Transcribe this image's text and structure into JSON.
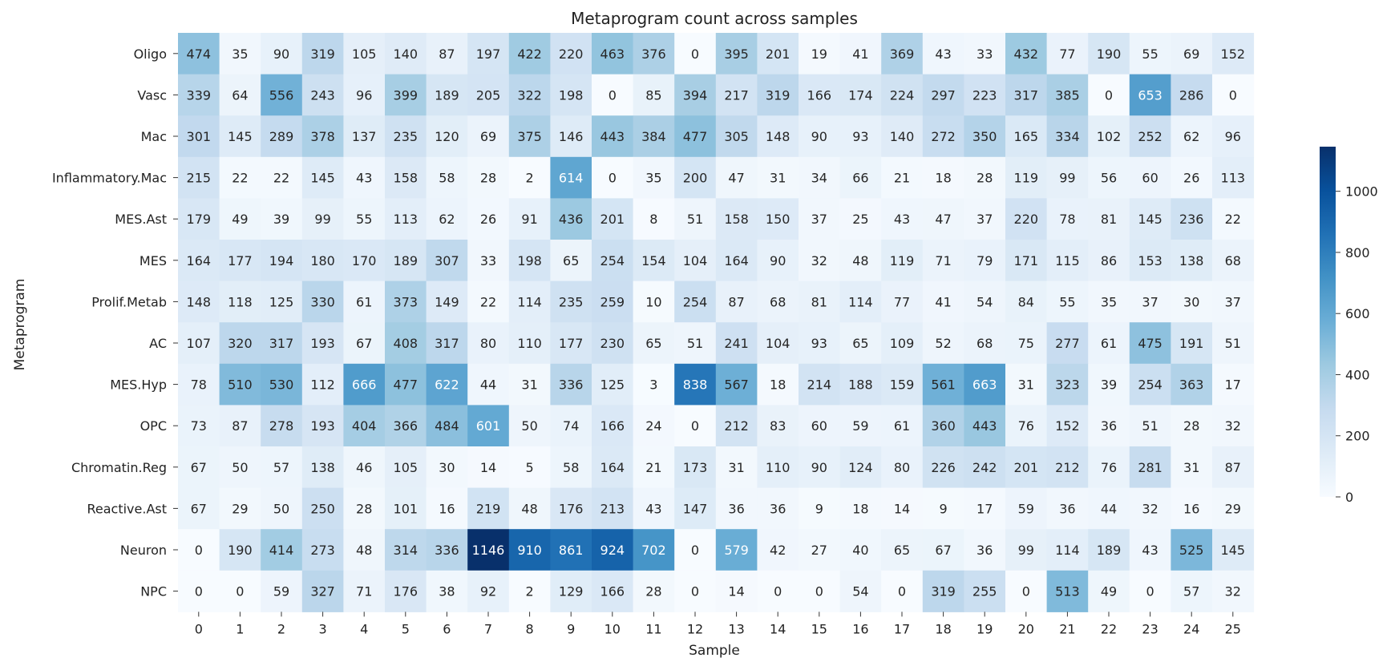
{
  "chart_data": {
    "type": "heatmap",
    "title": "Metaprogram count across samples",
    "xlabel": "Sample",
    "ylabel": "Metaprogram",
    "colormap": "Blues",
    "color_low": "#f7fbff",
    "color_high": "#08306b",
    "vmin": 0,
    "vmax": 1146,
    "colorbar_ticks": [
      0,
      200,
      400,
      600,
      800,
      1000
    ],
    "x": [
      "0",
      "1",
      "2",
      "3",
      "4",
      "5",
      "6",
      "7",
      "8",
      "9",
      "10",
      "11",
      "12",
      "13",
      "14",
      "15",
      "16",
      "17",
      "18",
      "19",
      "20",
      "21",
      "22",
      "23",
      "24",
      "25"
    ],
    "y": [
      "Oligo",
      "Vasc",
      "Mac",
      "Inflammatory.Mac",
      "MES.Ast",
      "MES",
      "Prolif.Metab",
      "AC",
      "MES.Hyp",
      "OPC",
      "Chromatin.Reg",
      "Reactive.Ast",
      "Neuron",
      "NPC"
    ],
    "values": [
      [
        474,
        35,
        90,
        319,
        105,
        140,
        87,
        197,
        422,
        220,
        463,
        376,
        0,
        395,
        201,
        19,
        41,
        369,
        43,
        33,
        432,
        77,
        190,
        55,
        69,
        152
      ],
      [
        339,
        64,
        556,
        243,
        96,
        399,
        189,
        205,
        322,
        198,
        0,
        85,
        394,
        217,
        319,
        166,
        174,
        224,
        297,
        223,
        317,
        385,
        0,
        653,
        286,
        0
      ],
      [
        301,
        145,
        289,
        378,
        137,
        235,
        120,
        69,
        375,
        146,
        443,
        384,
        477,
        305,
        148,
        90,
        93,
        140,
        272,
        350,
        165,
        334,
        102,
        252,
        62,
        96
      ],
      [
        215,
        22,
        22,
        145,
        43,
        158,
        58,
        28,
        2,
        614,
        0,
        35,
        200,
        47,
        31,
        34,
        66,
        21,
        18,
        28,
        119,
        99,
        56,
        60,
        26,
        113
      ],
      [
        179,
        49,
        39,
        99,
        55,
        113,
        62,
        26,
        91,
        436,
        201,
        8,
        51,
        158,
        150,
        37,
        25,
        43,
        47,
        37,
        220,
        78,
        81,
        145,
        236,
        22
      ],
      [
        164,
        177,
        194,
        180,
        170,
        189,
        307,
        33,
        198,
        65,
        254,
        154,
        104,
        164,
        90,
        32,
        48,
        119,
        71,
        79,
        171,
        115,
        86,
        153,
        138,
        68
      ],
      [
        148,
        118,
        125,
        330,
        61,
        373,
        149,
        22,
        114,
        235,
        259,
        10,
        254,
        87,
        68,
        81,
        114,
        77,
        41,
        54,
        84,
        55,
        35,
        37,
        30,
        37
      ],
      [
        107,
        320,
        317,
        193,
        67,
        408,
        317,
        80,
        110,
        177,
        230,
        65,
        51,
        241,
        104,
        93,
        65,
        109,
        52,
        68,
        75,
        277,
        61,
        475,
        191,
        51
      ],
      [
        78,
        510,
        530,
        112,
        666,
        477,
        622,
        44,
        31,
        336,
        125,
        3,
        838,
        567,
        18,
        214,
        188,
        159,
        561,
        663,
        31,
        323,
        39,
        254,
        363,
        17
      ],
      [
        73,
        87,
        278,
        193,
        404,
        366,
        484,
        601,
        50,
        74,
        166,
        24,
        0,
        212,
        83,
        60,
        59,
        61,
        360,
        443,
        76,
        152,
        36,
        51,
        28,
        32
      ],
      [
        67,
        50,
        57,
        138,
        46,
        105,
        30,
        14,
        5,
        58,
        164,
        21,
        173,
        31,
        110,
        90,
        124,
        80,
        226,
        242,
        201,
        212,
        76,
        281,
        31,
        87
      ],
      [
        67,
        29,
        50,
        250,
        28,
        101,
        16,
        219,
        48,
        176,
        213,
        43,
        147,
        36,
        36,
        9,
        18,
        14,
        9,
        17,
        59,
        36,
        44,
        32,
        16,
        29
      ],
      [
        0,
        190,
        414,
        273,
        48,
        314,
        336,
        1146,
        910,
        861,
        924,
        702,
        0,
        579,
        42,
        27,
        40,
        65,
        67,
        36,
        99,
        114,
        189,
        43,
        525,
        145
      ],
      [
        0,
        0,
        59,
        327,
        71,
        176,
        38,
        92,
        2,
        129,
        166,
        28,
        0,
        14,
        0,
        0,
        54,
        0,
        319,
        255,
        0,
        513,
        49,
        0,
        57,
        32
      ]
    ]
  }
}
